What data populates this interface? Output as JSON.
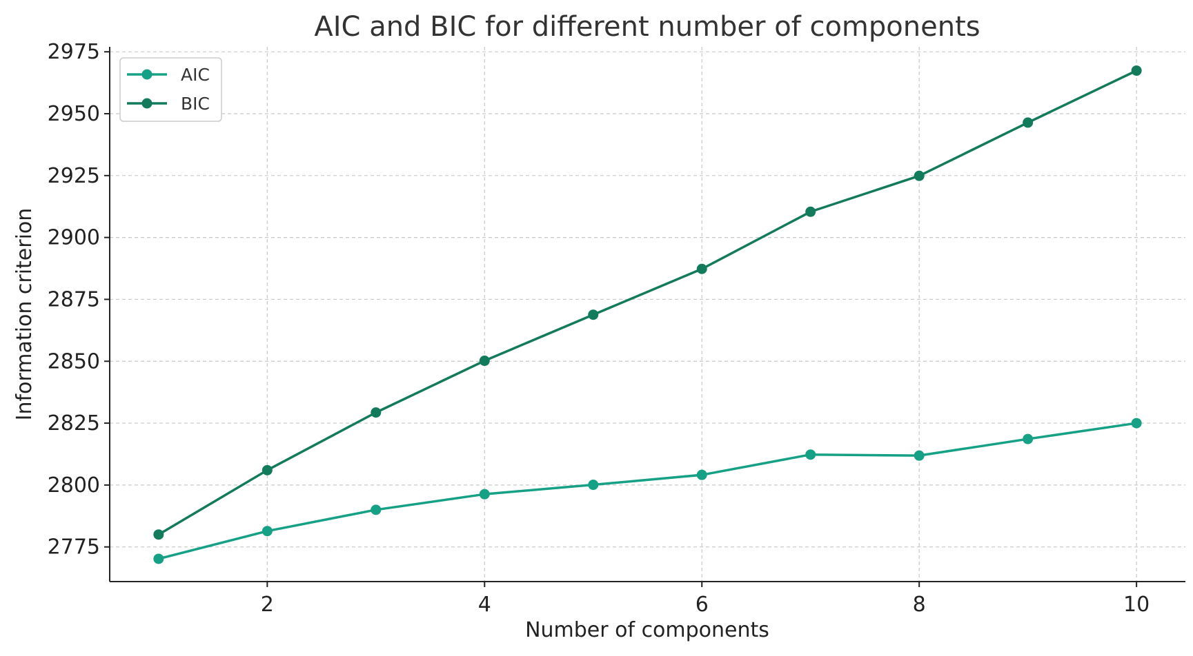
{
  "chart_data": {
    "type": "line",
    "title": "AIC and BIC for different number of components",
    "xlabel": "Number of components",
    "ylabel": "Information criterion",
    "x": [
      1,
      2,
      3,
      4,
      5,
      6,
      7,
      8,
      9,
      10
    ],
    "xlim": [
      0.55,
      10.45
    ],
    "ylim": [
      2761,
      2977
    ],
    "xticks": [
      2,
      4,
      6,
      8,
      10
    ],
    "yticks": [
      2775,
      2800,
      2825,
      2850,
      2875,
      2900,
      2925,
      2950,
      2975
    ],
    "grid": true,
    "legend_position": "top-left",
    "series": [
      {
        "name": "AIC",
        "color": "#16a085",
        "marker": "circle",
        "values": [
          2770.2,
          2781.4,
          2790.0,
          2796.3,
          2800.1,
          2804.1,
          2812.3,
          2811.9,
          2818.6,
          2825.0
        ]
      },
      {
        "name": "BIC",
        "color": "#137a5c",
        "marker": "circle",
        "values": [
          2780.0,
          2806.0,
          2829.3,
          2850.2,
          2868.8,
          2887.3,
          2910.4,
          2924.9,
          2946.4,
          2967.4
        ]
      }
    ]
  }
}
